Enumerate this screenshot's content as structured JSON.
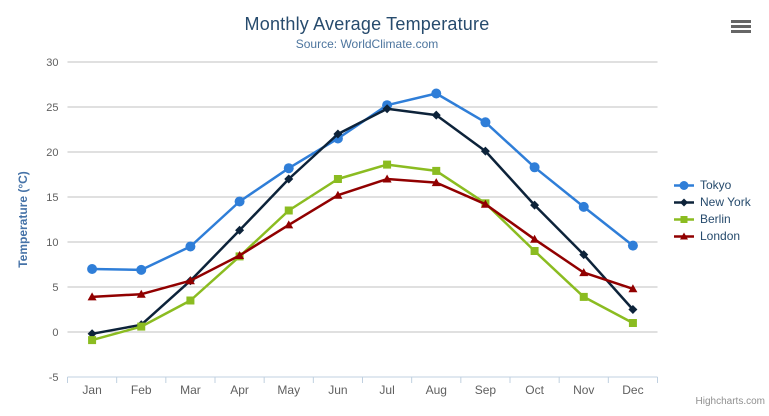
{
  "chart_data": {
    "type": "line",
    "title": "Monthly Average Temperature",
    "subtitle": "Source: WorldClimate.com",
    "xlabel": "",
    "ylabel": "Temperature (°C)",
    "ylim": [
      -5,
      30
    ],
    "ytick_step": 5,
    "grid": true,
    "legend_position": "right",
    "categories": [
      "Jan",
      "Feb",
      "Mar",
      "Apr",
      "May",
      "Jun",
      "Jul",
      "Aug",
      "Sep",
      "Oct",
      "Nov",
      "Dec"
    ],
    "series": [
      {
        "name": "Tokyo",
        "color": "#2f7ed8",
        "marker": "circle",
        "values": [
          7.0,
          6.9,
          9.5,
          14.5,
          18.2,
          21.5,
          25.2,
          26.5,
          23.3,
          18.3,
          13.9,
          9.6
        ]
      },
      {
        "name": "New York",
        "color": "#0d233a",
        "marker": "diamond",
        "values": [
          -0.2,
          0.8,
          5.7,
          11.3,
          17.0,
          22.0,
          24.8,
          24.1,
          20.1,
          14.1,
          8.6,
          2.5
        ]
      },
      {
        "name": "Berlin",
        "color": "#8bbc21",
        "marker": "square",
        "values": [
          -0.9,
          0.6,
          3.5,
          8.4,
          13.5,
          17.0,
          18.6,
          17.9,
          14.3,
          9.0,
          3.9,
          1.0
        ]
      },
      {
        "name": "London",
        "color": "#910000",
        "marker": "triangle",
        "values": [
          3.9,
          4.2,
          5.7,
          8.5,
          11.9,
          15.2,
          17.0,
          16.6,
          14.2,
          10.3,
          6.6,
          4.8
        ]
      }
    ]
  },
  "export_menu": {
    "icon": "hamburger-icon"
  },
  "credits": {
    "label": "Highcharts.com"
  },
  "colors": {
    "background": "#ffffff",
    "title": "#274b6d",
    "subtitle": "#4d759e",
    "y_axis_title": "#4572a7",
    "tick_label": "#606060",
    "grid_line": "#c0c0c0",
    "axis_line": "#c0d0e0",
    "legend_text": "#274b6d",
    "credits": "#909090",
    "menu_icon": "#666666"
  }
}
